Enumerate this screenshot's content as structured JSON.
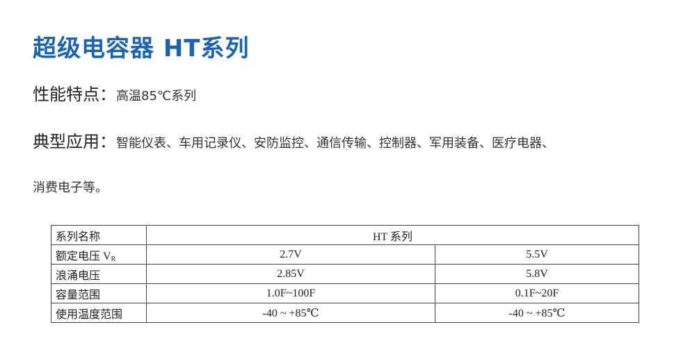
{
  "title": "超级电容器 HT系列",
  "features": {
    "label": "性能特点：",
    "value": "高温85℃系列"
  },
  "applications": {
    "label": "典型应用：",
    "value_line1": "智能仪表、车用记录仪、安防监控、通信传输、控制器、军用装备、医疗电器、",
    "value_line2": "消费电子等。"
  },
  "table": {
    "header": {
      "label": "系列名称",
      "value": "HT 系列"
    },
    "rows": [
      {
        "label": "额定电压 V",
        "sub": "R",
        "values": [
          "2.7V",
          "5.5V"
        ]
      },
      {
        "label": "浪涌电压",
        "values": [
          "2.85V",
          "5.8V"
        ]
      },
      {
        "label": "容量范围",
        "values": [
          "1.0F~100F",
          "0.1F~20F"
        ]
      },
      {
        "label": "使用温度范围",
        "values": [
          "-40 ~ +85℃",
          "-40 ~ +85℃"
        ]
      }
    ]
  },
  "colors": {
    "title": "#1a63b3"
  }
}
